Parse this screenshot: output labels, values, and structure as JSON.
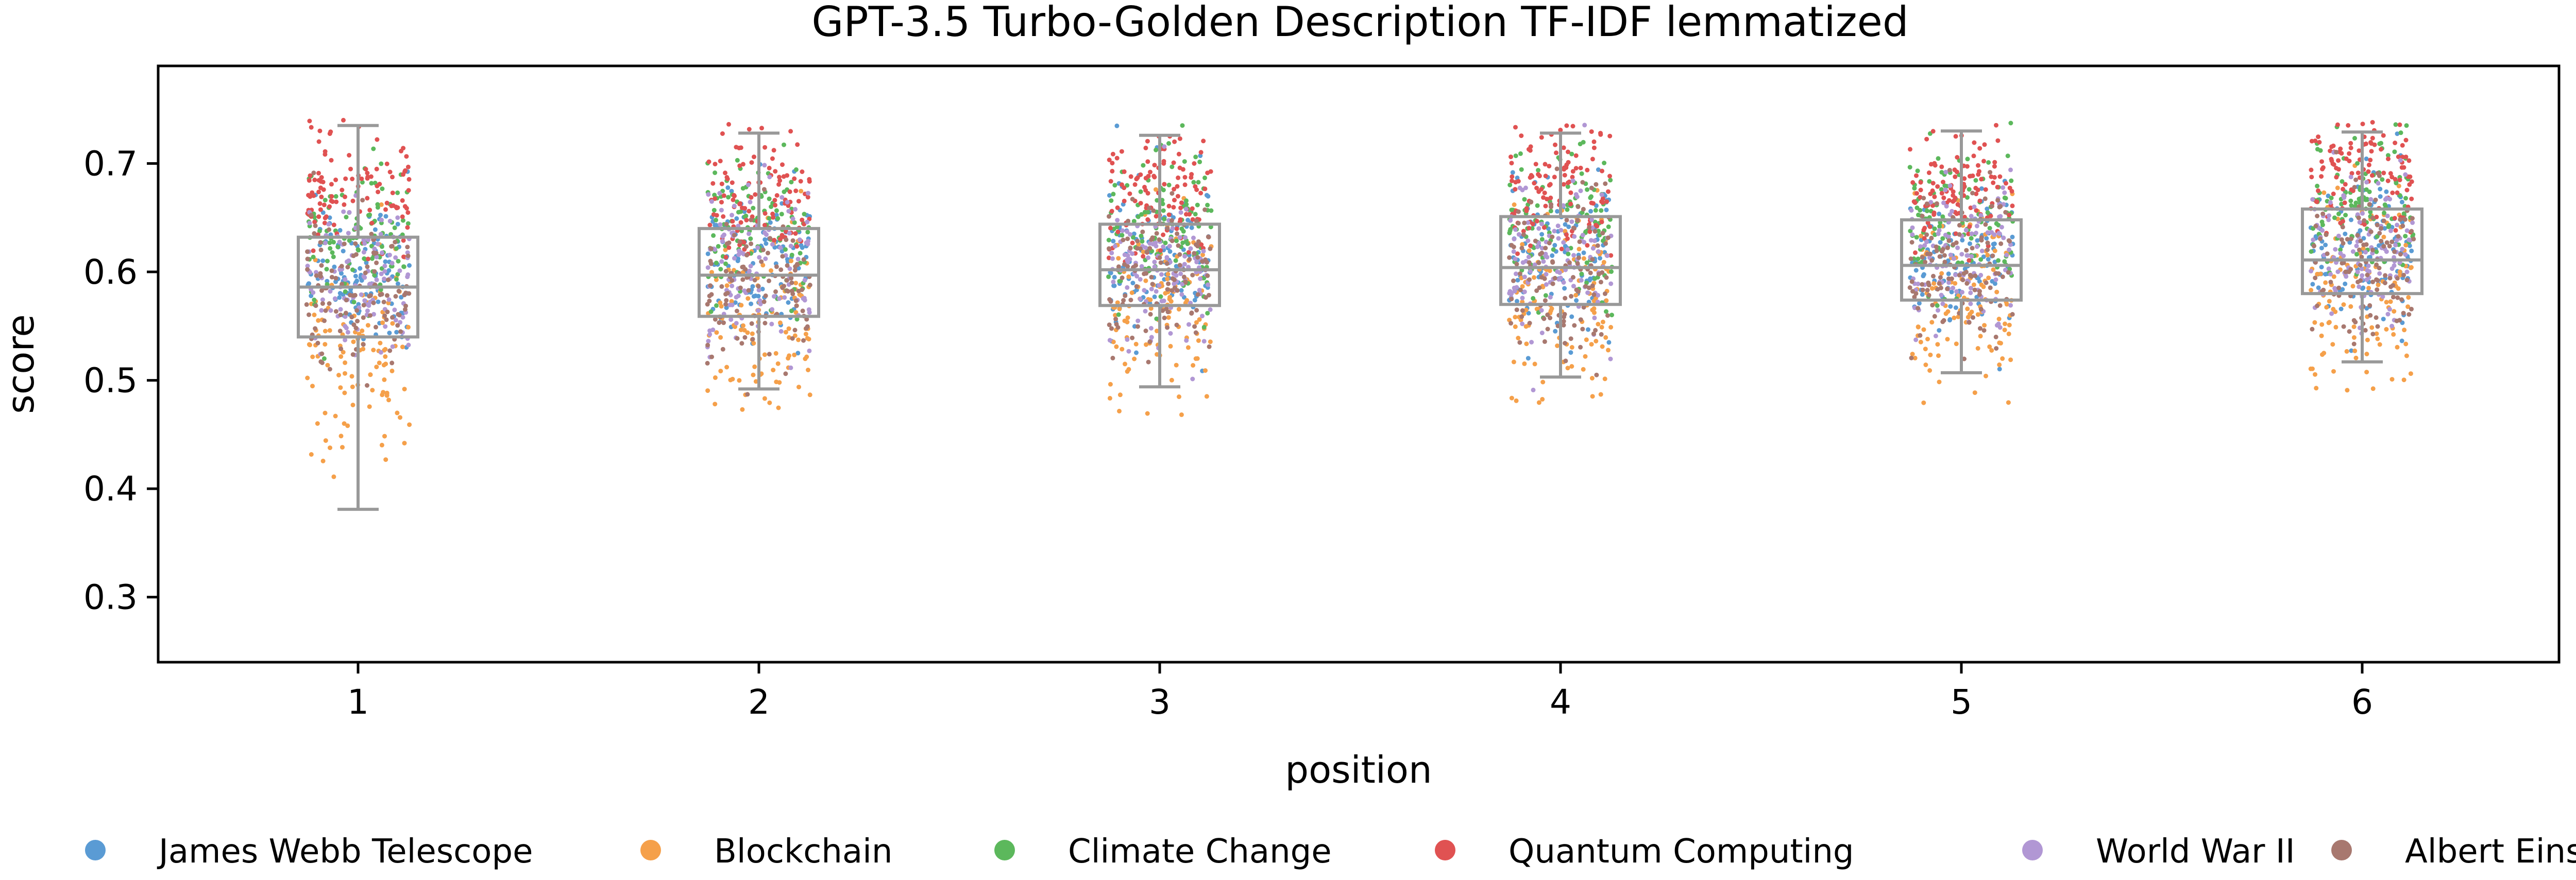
{
  "chart_data": {
    "type": "box-strip",
    "title": "GPT-3.5 Turbo-Golden Description TF-IDF lemmatized",
    "xlabel": "position",
    "ylabel": "score",
    "categories": [
      "1",
      "2",
      "3",
      "4",
      "5",
      "6"
    ],
    "ylim": [
      0.24,
      0.79
    ],
    "yticks": [
      0.3,
      0.4,
      0.5,
      0.6,
      0.7
    ],
    "grid": false,
    "legend_position": "bottom",
    "box_color": "#999999",
    "boxes": [
      {
        "position": "1",
        "whisker_low": 0.381,
        "q1": 0.54,
        "median": 0.586,
        "q3": 0.632,
        "whisker_high": 0.735
      },
      {
        "position": "2",
        "whisker_low": 0.492,
        "q1": 0.559,
        "median": 0.597,
        "q3": 0.64,
        "whisker_high": 0.728
      },
      {
        "position": "3",
        "whisker_low": 0.494,
        "q1": 0.569,
        "median": 0.602,
        "q3": 0.644,
        "whisker_high": 0.726
      },
      {
        "position": "4",
        "whisker_low": 0.503,
        "q1": 0.57,
        "median": 0.604,
        "q3": 0.651,
        "whisker_high": 0.728
      },
      {
        "position": "5",
        "whisker_low": 0.507,
        "q1": 0.574,
        "median": 0.606,
        "q3": 0.648,
        "whisker_high": 0.73
      },
      {
        "position": "6",
        "whisker_low": 0.517,
        "q1": 0.58,
        "median": 0.611,
        "q3": 0.658,
        "whisker_high": 0.729
      }
    ],
    "series": [
      {
        "name": "James Webb Telescope",
        "color": "#5a9bd4",
        "means": [
          0.6,
          0.61,
          0.61,
          0.61,
          0.61,
          0.62
        ],
        "spread": 0.035
      },
      {
        "name": "Blockchain",
        "color": "#f5a04a",
        "means": [
          0.52,
          0.55,
          0.57,
          0.57,
          0.57,
          0.58
        ],
        "spread": 0.045
      },
      {
        "name": "Climate Change",
        "color": "#5cb85c",
        "means": [
          0.63,
          0.64,
          0.64,
          0.65,
          0.65,
          0.66
        ],
        "spread": 0.035
      },
      {
        "name": "Quantum Computing",
        "color": "#e05252",
        "means": [
          0.67,
          0.67,
          0.67,
          0.68,
          0.68,
          0.69
        ],
        "spread": 0.03
      },
      {
        "name": "World War II",
        "color": "#b197d4",
        "means": [
          0.59,
          0.6,
          0.6,
          0.61,
          0.61,
          0.62
        ],
        "spread": 0.035
      },
      {
        "name": "Albert Einstein",
        "color": "#a8786f",
        "means": [
          0.58,
          0.59,
          0.6,
          0.6,
          0.6,
          0.61
        ],
        "spread": 0.035
      }
    ]
  }
}
